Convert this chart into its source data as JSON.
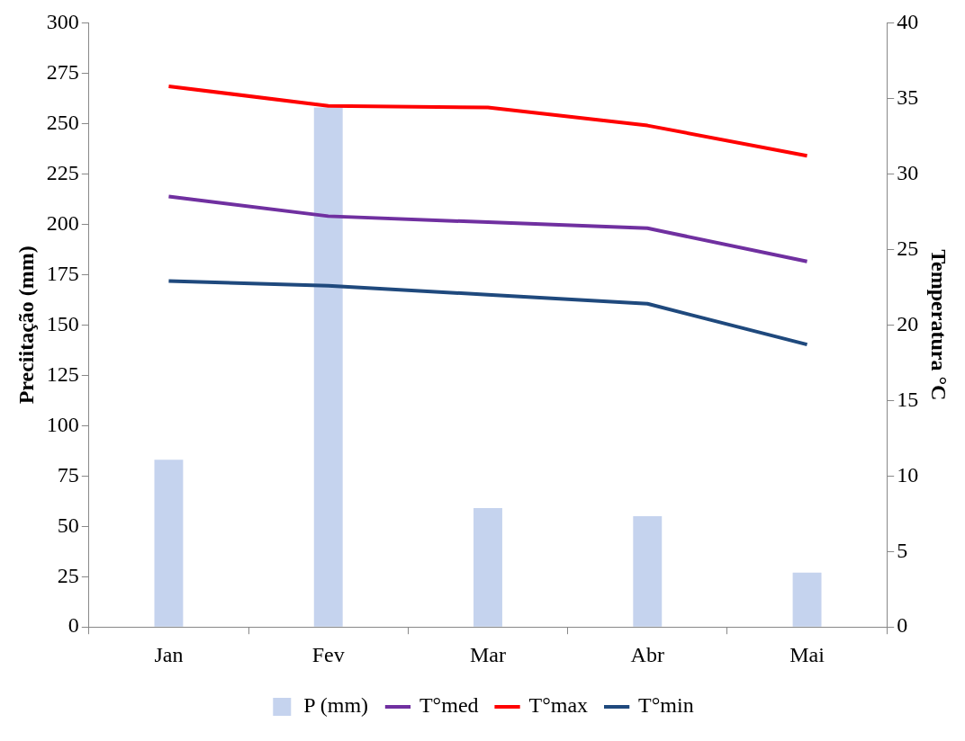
{
  "chart_data": {
    "type": "bar",
    "categories": [
      "Jan",
      "Fev",
      "Mar",
      "Abr",
      "Mai"
    ],
    "ylabel": "Preciitação (mm)",
    "y2label": "Temperatura °C",
    "ylim": [
      0,
      300
    ],
    "yticks": [
      0,
      25,
      50,
      75,
      100,
      125,
      150,
      175,
      200,
      225,
      250,
      275,
      300
    ],
    "y2lim": [
      0,
      40
    ],
    "y2ticks": [
      0,
      5,
      10,
      15,
      20,
      25,
      30,
      35,
      40
    ],
    "grid": false,
    "legend": "bottom",
    "marker": "none",
    "line_style": "solid",
    "series": [
      {
        "name": "P (mm)",
        "color": "#c5d3ee",
        "values": [
          83,
          258,
          59,
          55,
          27
        ]
      },
      {
        "name": "T°med",
        "type": "line",
        "axis": "y2",
        "color": "#7030a0",
        "values": [
          28.5,
          27.2,
          26.8,
          26.4,
          24.2
        ]
      },
      {
        "name": "T°max",
        "type": "line",
        "axis": "y2",
        "color": "#ff0000",
        "values": [
          35.8,
          34.5,
          34.4,
          33.2,
          31.2
        ]
      },
      {
        "name": "T°min",
        "type": "line",
        "axis": "y2",
        "color": "#1f497d",
        "values": [
          22.9,
          22.6,
          22.0,
          21.4,
          18.7
        ]
      }
    ]
  }
}
